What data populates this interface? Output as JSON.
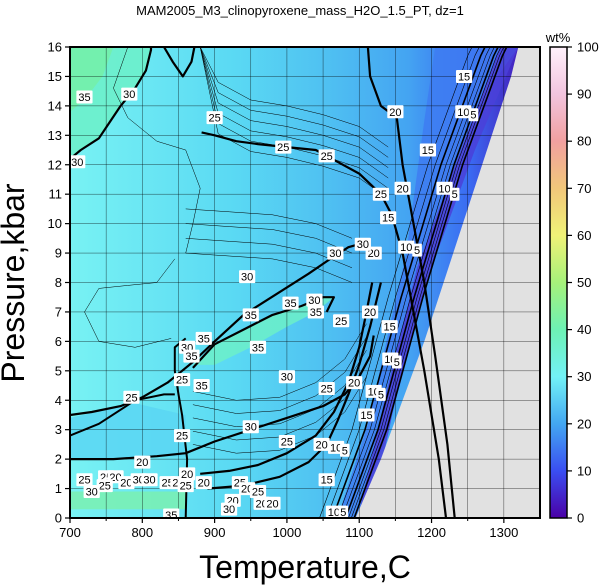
{
  "chart_data": {
    "type": "heatmap",
    "title": "MAM2005_M3_clinopyroxene_mass_H2O_1.5_PT, dz=1",
    "xlabel": "Temperature,C",
    "ylabel": "Pressure,kbar",
    "xlim": [
      700,
      1350
    ],
    "ylim": [
      0,
      16
    ],
    "x_ticks": [
      "700",
      "800",
      "900",
      "1000",
      "1100",
      "1200",
      "1300"
    ],
    "y_ticks": [
      "0",
      "1",
      "2",
      "3",
      "4",
      "5",
      "6",
      "7",
      "8",
      "9",
      "10",
      "11",
      "12",
      "13",
      "14",
      "15",
      "16"
    ],
    "grid": true,
    "colorbar": {
      "title": "wt%",
      "range": [
        0,
        100
      ],
      "ticks": [
        "0",
        "10",
        "20",
        "30",
        "40",
        "50",
        "60",
        "70",
        "80",
        "90",
        "100"
      ],
      "stops": [
        {
          "v": 0,
          "c": "#4a00a6"
        },
        {
          "v": 10,
          "c": "#3a4ef2"
        },
        {
          "v": 20,
          "c": "#43a7f2"
        },
        {
          "v": 30,
          "c": "#72f2f6"
        },
        {
          "v": 40,
          "c": "#6df2b4"
        },
        {
          "v": 50,
          "c": "#a6f27a"
        },
        {
          "v": 60,
          "c": "#f0f277"
        },
        {
          "v": 70,
          "c": "#f2c77a"
        },
        {
          "v": 80,
          "c": "#f2a0a0"
        },
        {
          "v": 90,
          "c": "#f2c4de"
        },
        {
          "v": 100,
          "c": "#fff1fb"
        }
      ]
    },
    "contour_labels": [
      {
        "text": "35",
        "x": 720,
        "y": 14.3
      },
      {
        "text": "30",
        "x": 782,
        "y": 14.4
      },
      {
        "text": "30",
        "x": 710,
        "y": 12.1
      },
      {
        "text": "25",
        "x": 900,
        "y": 13.6
      },
      {
        "text": "25",
        "x": 995,
        "y": 12.6
      },
      {
        "text": "25",
        "x": 1055,
        "y": 12.3
      },
      {
        "text": "20",
        "x": 1150,
        "y": 13.8
      },
      {
        "text": "15",
        "x": 1245,
        "y": 15.0
      },
      {
        "text": "10",
        "x": 1244,
        "y": 13.8
      },
      {
        "text": "5",
        "x": 1258,
        "y": 13.7
      },
      {
        "text": "25",
        "x": 1130,
        "y": 11.0
      },
      {
        "text": "20",
        "x": 1160,
        "y": 11.2
      },
      {
        "text": "15",
        "x": 1195,
        "y": 12.5
      },
      {
        "text": "10",
        "x": 1218,
        "y": 11.2
      },
      {
        "text": "5",
        "x": 1232,
        "y": 11.0
      },
      {
        "text": "15",
        "x": 1140,
        "y": 10.2
      },
      {
        "text": "20",
        "x": 1120,
        "y": 9.0
      },
      {
        "text": "10",
        "x": 1165,
        "y": 9.2
      },
      {
        "text": "5",
        "x": 1180,
        "y": 9.1
      },
      {
        "text": "30",
        "x": 1067,
        "y": 9.0
      },
      {
        "text": "30",
        "x": 1105,
        "y": 9.3
      },
      {
        "text": "30",
        "x": 945,
        "y": 8.2
      },
      {
        "text": "35",
        "x": 1040,
        "y": 7.0
      },
      {
        "text": "35",
        "x": 1005,
        "y": 7.3
      },
      {
        "text": "35",
        "x": 950,
        "y": 6.9
      },
      {
        "text": "30",
        "x": 1038,
        "y": 7.4
      },
      {
        "text": "25",
        "x": 1075,
        "y": 6.7
      },
      {
        "text": "20",
        "x": 1115,
        "y": 7.0
      },
      {
        "text": "15",
        "x": 1142,
        "y": 6.5
      },
      {
        "text": "10",
        "x": 1143,
        "y": 5.4
      },
      {
        "text": "5",
        "x": 1152,
        "y": 5.3
      },
      {
        "text": "35",
        "x": 885,
        "y": 6.1
      },
      {
        "text": "30",
        "x": 862,
        "y": 5.8
      },
      {
        "text": "35",
        "x": 868,
        "y": 5.5
      },
      {
        "text": "35",
        "x": 960,
        "y": 5.8
      },
      {
        "text": "25",
        "x": 855,
        "y": 4.7
      },
      {
        "text": "35",
        "x": 882,
        "y": 4.5
      },
      {
        "text": "25",
        "x": 785,
        "y": 4.1
      },
      {
        "text": "30",
        "x": 1000,
        "y": 4.8
      },
      {
        "text": "25",
        "x": 1055,
        "y": 4.4
      },
      {
        "text": "20",
        "x": 1093,
        "y": 4.6
      },
      {
        "text": "15",
        "x": 1110,
        "y": 3.5
      },
      {
        "text": "10",
        "x": 1120,
        "y": 4.3
      },
      {
        "text": "5",
        "x": 1130,
        "y": 4.2
      },
      {
        "text": "30",
        "x": 950,
        "y": 3.1
      },
      {
        "text": "25",
        "x": 855,
        "y": 2.8
      },
      {
        "text": "20",
        "x": 1048,
        "y": 2.5
      },
      {
        "text": "25",
        "x": 1000,
        "y": 2.6
      },
      {
        "text": "10",
        "x": 1068,
        "y": 2.4
      },
      {
        "text": "5",
        "x": 1080,
        "y": 2.3
      },
      {
        "text": "20",
        "x": 800,
        "y": 1.9
      },
      {
        "text": "15",
        "x": 1055,
        "y": 1.3
      },
      {
        "text": "25",
        "x": 750,
        "y": 1.4
      },
      {
        "text": "20",
        "x": 763,
        "y": 1.4
      },
      {
        "text": "25",
        "x": 720,
        "y": 1.3
      },
      {
        "text": "25",
        "x": 748,
        "y": 1.1
      },
      {
        "text": "20",
        "x": 778,
        "y": 1.2
      },
      {
        "text": "30",
        "x": 795,
        "y": 1.3
      },
      {
        "text": "30",
        "x": 810,
        "y": 1.3
      },
      {
        "text": "25",
        "x": 835,
        "y": 1.2
      },
      {
        "text": "20",
        "x": 850,
        "y": 1.2
      },
      {
        "text": "20",
        "x": 862,
        "y": 1.5
      },
      {
        "text": "25",
        "x": 860,
        "y": 1.1
      },
      {
        "text": "20",
        "x": 885,
        "y": 1.2
      },
      {
        "text": "25",
        "x": 935,
        "y": 1.2
      },
      {
        "text": "20",
        "x": 925,
        "y": 0.6
      },
      {
        "text": "20",
        "x": 945,
        "y": 1.0
      },
      {
        "text": "25",
        "x": 960,
        "y": 0.9
      },
      {
        "text": "30",
        "x": 730,
        "y": 0.9
      },
      {
        "text": "25",
        "x": 965,
        "y": 0.5
      },
      {
        "text": "20",
        "x": 965,
        "y": 0.5
      },
      {
        "text": "20",
        "x": 980,
        "y": 0.5
      },
      {
        "text": "35",
        "x": 840,
        "y": 0.1
      },
      {
        "text": "30",
        "x": 920,
        "y": 0.3
      },
      {
        "text": "10",
        "x": 1065,
        "y": 0.2
      },
      {
        "text": "5",
        "x": 1078,
        "y": 0.2
      }
    ],
    "bold_contours": [
      {
        "level": 30,
        "points": [
          [
            700,
            12.2
          ],
          [
            715,
            12.5
          ],
          [
            740,
            12.9
          ],
          [
            770,
            14.0
          ],
          [
            790,
            14.6
          ],
          [
            805,
            15.2
          ],
          [
            812,
            15.9
          ],
          [
            812,
            16.0
          ]
        ]
      },
      {
        "level": 30,
        "points": [
          [
            830,
            16.0
          ],
          [
            842,
            15.5
          ],
          [
            856,
            15.0
          ],
          [
            868,
            15.5
          ],
          [
            872,
            16.0
          ]
        ]
      },
      {
        "level": 25,
        "points": [
          [
            882,
            13.1
          ],
          [
            900,
            13.0
          ],
          [
            930,
            12.8
          ],
          [
            960,
            12.7
          ],
          [
            1000,
            12.6
          ],
          [
            1040,
            12.5
          ],
          [
            1070,
            12.1
          ],
          [
            1100,
            11.7
          ],
          [
            1130,
            11.0
          ],
          [
            1145,
            10.3
          ],
          [
            1160,
            9.0
          ],
          [
            1175,
            7.0
          ],
          [
            1190,
            5.0
          ],
          [
            1210,
            2.0
          ],
          [
            1220,
            0.0
          ]
        ]
      },
      {
        "level": 20,
        "points": [
          [
            1112,
            16.0
          ],
          [
            1115,
            15.0
          ],
          [
            1130,
            14.0
          ],
          [
            1152,
            13.6
          ],
          [
            1160,
            12.0
          ],
          [
            1175,
            10.0
          ],
          [
            1190,
            8.0
          ],
          [
            1205,
            5.5
          ],
          [
            1222,
            2.5
          ],
          [
            1232,
            0.0
          ]
        ]
      },
      {
        "level": 30,
        "points": [
          [
            700,
            3.5
          ],
          [
            730,
            3.6
          ],
          [
            770,
            3.8
          ],
          [
            800,
            4.1
          ],
          [
            835,
            4.6
          ],
          [
            855,
            5.0
          ],
          [
            870,
            5.3
          ],
          [
            900,
            6.0
          ],
          [
            940,
            6.9
          ],
          [
            985,
            7.6
          ],
          [
            1030,
            8.3
          ],
          [
            1060,
            8.8
          ],
          [
            1085,
            9.2
          ],
          [
            1100,
            9.3
          ]
        ]
      },
      {
        "level": 35,
        "points": [
          [
            870,
            5.1
          ],
          [
            900,
            5.9
          ],
          [
            940,
            6.4
          ],
          [
            980,
            6.9
          ],
          [
            1020,
            7.2
          ],
          [
            1050,
            7.5
          ],
          [
            1065,
            7.5
          ],
          [
            1055,
            7.0
          ]
        ]
      },
      {
        "level": 30,
        "points": [
          [
            700,
            2.0
          ],
          [
            760,
            2.0
          ],
          [
            820,
            2.1
          ],
          [
            860,
            2.2
          ],
          [
            900,
            2.6
          ],
          [
            950,
            3.0
          ],
          [
            1000,
            3.4
          ],
          [
            1050,
            3.8
          ],
          [
            1080,
            4.2
          ],
          [
            1100,
            4.8
          ],
          [
            1115,
            5.5
          ],
          [
            1120,
            6.2
          ]
        ]
      },
      {
        "level": 25,
        "points": [
          [
            880,
            1.5
          ],
          [
            920,
            1.6
          ],
          [
            960,
            1.8
          ],
          [
            1000,
            2.2
          ],
          [
            1040,
            2.8
          ],
          [
            1065,
            3.6
          ],
          [
            1085,
            4.6
          ],
          [
            1100,
            5.8
          ],
          [
            1110,
            7.0
          ],
          [
            1118,
            8.0
          ]
        ]
      },
      {
        "level": 20,
        "points": [
          [
            890,
            1.0
          ],
          [
            940,
            1.1
          ],
          [
            990,
            1.4
          ],
          [
            1030,
            1.9
          ],
          [
            1055,
            2.5
          ],
          [
            1070,
            3.3
          ],
          [
            1085,
            4.2
          ],
          [
            1100,
            5.2
          ],
          [
            1115,
            6.5
          ],
          [
            1130,
            8.0
          ]
        ]
      }
    ],
    "region_boundaries": [
      {
        "name": "left-vertical",
        "points": [
          [
            860,
            0.0
          ],
          [
            862,
            2.0
          ],
          [
            855,
            3.5
          ],
          [
            850,
            4.2
          ],
          [
            845,
            5.0
          ],
          [
            845,
            5.8
          ],
          [
            860,
            6.1
          ]
        ]
      },
      {
        "name": "lower-left",
        "points": [
          [
            700,
            2.8
          ],
          [
            740,
            3.2
          ],
          [
            790,
            4.0
          ],
          [
            830,
            4.2
          ],
          [
            845,
            4.2
          ]
        ]
      }
    ]
  }
}
